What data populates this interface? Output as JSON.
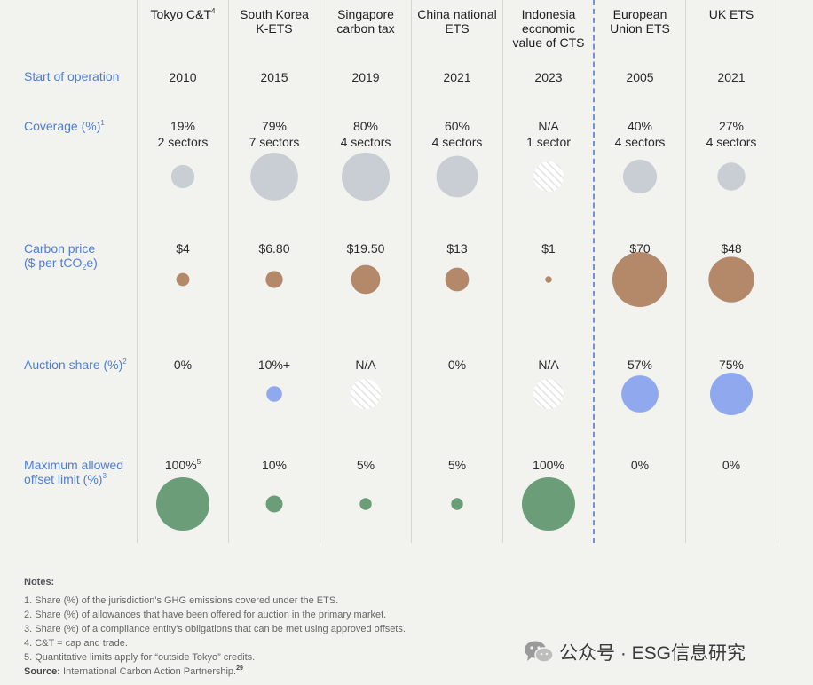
{
  "chart_data": {
    "type": "table",
    "title": "",
    "columns": [
      {
        "name": "Tokyo C&T",
        "note": "4"
      },
      {
        "name": "South Korea K-ETS",
        "note": ""
      },
      {
        "name": "Singapore carbon tax",
        "note": ""
      },
      {
        "name": "China national ETS",
        "note": ""
      },
      {
        "name": "Indonesia economic value of CTS",
        "note": ""
      },
      {
        "name": "European Union ETS",
        "note": ""
      },
      {
        "name": "UK ETS",
        "note": ""
      }
    ],
    "rows": {
      "start": {
        "label": "Start of operation",
        "values": [
          "2010",
          "2015",
          "2019",
          "2021",
          "2023",
          "2005",
          "2021"
        ]
      },
      "coverage": {
        "label": "Coverage (%)",
        "note": "1",
        "values": [
          "19%",
          "79%",
          "80%",
          "60%",
          "N/A",
          "40%",
          "27%"
        ],
        "sectors": [
          "2 sectors",
          "7 sectors",
          "4 sectors",
          "4 sectors",
          "1 sector",
          "4 sectors",
          "4 sectors"
        ],
        "numeric": [
          19,
          79,
          80,
          60,
          null,
          40,
          27
        ]
      },
      "price": {
        "label_line1": "Carbon price",
        "label_line2_pre": "($ per tCO",
        "label_sub": "2",
        "label_line2_post": "e)",
        "values": [
          "$4",
          "$6.80",
          "$19.50",
          "$13",
          "$1",
          "$70",
          "$48"
        ],
        "numeric": [
          4,
          6.8,
          19.5,
          13,
          1,
          70,
          48
        ]
      },
      "auction": {
        "label": "Auction share (%)",
        "note": "2",
        "values": [
          "0%",
          "10%+",
          "N/A",
          "0%",
          "N/A",
          "57%",
          "75%"
        ],
        "numeric": [
          0,
          10,
          null,
          0,
          null,
          57,
          75
        ]
      },
      "offset": {
        "label_line1": "Maximum allowed",
        "label_line2": "offset limit (%)",
        "note": "3",
        "values": [
          "100%",
          "10%",
          "5%",
          "5%",
          "100%",
          "0%",
          "0%"
        ],
        "value_notes": [
          "5",
          "",
          "",
          "",
          "",
          "",
          ""
        ],
        "numeric": [
          100,
          10,
          5,
          5,
          100,
          0,
          0
        ]
      }
    },
    "colors": {
      "coverage": "#c9ced4",
      "price": "#b3896a",
      "auction": "#8fa8ee",
      "offset": "#6b9e78",
      "na_fill": "#ffffff",
      "na_hatch": "#e3e3e3"
    }
  },
  "notes": {
    "heading": "Notes:",
    "items": [
      "1. Share (%) of the jurisdiction's GHG emissions covered under the ETS.",
      "2. Share (%) of allowances that have been offered for auction in the primary market.",
      "3. Share (%) of a compliance entity's obligations that can be met using approved offsets.",
      "4. C&T = cap and trade.",
      "5. Quantitative limits apply for “outside Tokyo” credits."
    ],
    "source_label": "Source:",
    "source_text": "International Carbon Action Partnership.",
    "source_note": "29"
  },
  "watermark": {
    "icon": "wechat-icon",
    "text": "公众号 · ESG信息研究"
  }
}
